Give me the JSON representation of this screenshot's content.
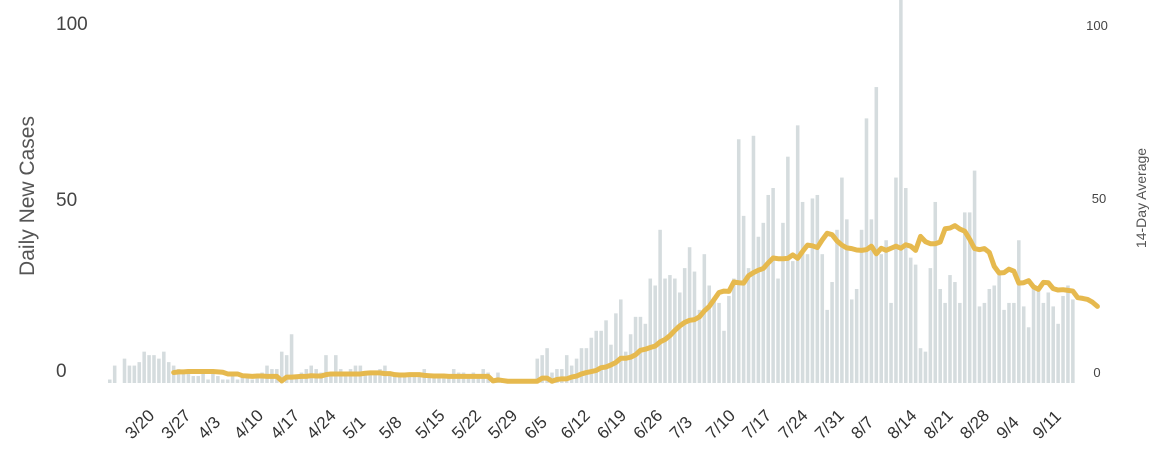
{
  "chart_data": {
    "type": "bar",
    "ylabel": "Daily New Cases",
    "y2label": "14-Day Average",
    "ylim": [
      0,
      110
    ],
    "y2lim": [
      0,
      110
    ],
    "yticks": [
      "0",
      "50",
      "100"
    ],
    "y2ticks": [
      "0",
      "50",
      "100"
    ],
    "xtick_labels": [
      "3/20",
      "3/27",
      "4/3",
      "4/10",
      "4/17",
      "4/24",
      "5/1",
      "5/8",
      "5/15",
      "5/22",
      "5/29",
      "6/5",
      "6/12",
      "6/19",
      "6/26",
      "7/3",
      "7/10",
      "7/17",
      "7/24",
      "7/31",
      "8/7",
      "8/14",
      "8/21",
      "8/28",
      "9/4",
      "9/11"
    ],
    "grid": false,
    "legend": "none",
    "colors": {
      "bars": "#d5dcde",
      "line": "#e6b94e"
    },
    "series": [
      {
        "type": "bar",
        "values": [
          1,
          5,
          0,
          7,
          5,
          5,
          6,
          9,
          8,
          8,
          7,
          9,
          6,
          5,
          4,
          3,
          4,
          2,
          2,
          3,
          1,
          3,
          2,
          1,
          1,
          2,
          1,
          2,
          2,
          1,
          2,
          3,
          5,
          4,
          4,
          9,
          8,
          14,
          2,
          3,
          4,
          5,
          4,
          3,
          8,
          3,
          8,
          4,
          2,
          4,
          5,
          5,
          3,
          3,
          3,
          4,
          5,
          3,
          2,
          3,
          2,
          2,
          3,
          3,
          4,
          2,
          2,
          2,
          2,
          2,
          4,
          3,
          3,
          2,
          3,
          2,
          4,
          3,
          1,
          3,
          1,
          0,
          1,
          0,
          0,
          0,
          1,
          7,
          8,
          10,
          3,
          4,
          4,
          8,
          5,
          7,
          10,
          10,
          13,
          15,
          15,
          18,
          11,
          20,
          24,
          9,
          14,
          19,
          19,
          17,
          30,
          28,
          44,
          30,
          31,
          30,
          26,
          33,
          39,
          32,
          21,
          37,
          28,
          24,
          23,
          15,
          25,
          30,
          70,
          48,
          33,
          71,
          42,
          46,
          54,
          56,
          30,
          46,
          65,
          35,
          74,
          52,
          37,
          53,
          54,
          37,
          21,
          29,
          44,
          59,
          47,
          24,
          27,
          44,
          76,
          47,
          85,
          37,
          41,
          23,
          59,
          112,
          56,
          36,
          34,
          10,
          9,
          33,
          52,
          27,
          23,
          31,
          29,
          23,
          49,
          49,
          61,
          22,
          23,
          27,
          28,
          31,
          21,
          23,
          23,
          41,
          22,
          16,
          27,
          27,
          23,
          26,
          22,
          17,
          25,
          28,
          24
        ]
      },
      {
        "type": "line",
        "values": [
          null,
          null,
          null,
          null,
          null,
          null,
          null,
          null,
          null,
          null,
          null,
          null,
          null,
          3,
          3.2,
          3.2,
          3.3,
          3.3,
          3.3,
          3.3,
          3.3,
          3.3,
          3.2,
          3.1,
          2.6,
          2.6,
          2.6,
          2.1,
          2,
          1.9,
          2,
          2,
          1.9,
          1.9,
          1.9,
          0.6,
          1.7,
          1.7,
          1.8,
          1.9,
          1.9,
          2.1,
          2,
          2,
          2.4,
          2.6,
          2.6,
          2.6,
          2.6,
          2.6,
          2.6,
          2.6,
          2.8,
          2.9,
          2.9,
          2.9,
          2.7,
          2.7,
          2.4,
          2.3,
          2.3,
          2.4,
          2.4,
          2.4,
          2.2,
          2.1,
          2,
          2,
          2,
          1.9,
          1.9,
          1.9,
          1.9,
          1.9,
          1.9,
          1.9,
          1.9,
          1.9,
          0.6,
          0.9,
          0.7,
          0.5,
          0.5,
          0.5,
          0.5,
          0.5,
          0.5,
          0.5,
          1.4,
          1.4,
          0.5,
          1,
          1.2,
          1.2,
          1.7,
          2,
          2.6,
          3,
          3.3,
          3.6,
          4.4,
          4.6,
          5.2,
          5.9,
          7.1,
          7.1,
          7.4,
          8.1,
          9.4,
          9.7,
          10.2,
          10.6,
          11.8,
          12.5,
          13.6,
          15.1,
          16.4,
          17.4,
          18,
          18.2,
          19,
          20.7,
          22,
          24,
          26,
          26.4,
          26.3,
          29,
          28.8,
          28.7,
          30.8,
          31.7,
          32.4,
          32.9,
          34.5,
          35.9,
          35.7,
          35.7,
          35.8,
          36.8,
          35.8,
          37.8,
          39.6,
          39.4,
          38.9,
          41.1,
          43,
          42.6,
          40.8,
          39.6,
          38.8,
          38.6,
          38.2,
          38.1,
          38.3,
          39.3,
          37.1,
          38.7,
          38.1,
          38.7,
          39.3,
          38.7,
          39.7,
          39.3,
          38.1,
          42.1,
          40.6,
          40,
          40,
          40.5,
          44.3,
          44.5,
          45.2,
          44.2,
          43.6,
          41.3,
          38.6,
          38.3,
          38.6,
          37.5,
          33.5,
          31.6,
          31.7,
          32.7,
          32.1,
          28.7,
          28.8,
          29.4,
          27.6,
          26.9,
          28.9,
          28.8,
          27.1,
          26.7,
          26.8,
          26.6,
          26.4,
          24.5,
          24.3,
          24,
          23.2,
          22
        ]
      }
    ]
  }
}
